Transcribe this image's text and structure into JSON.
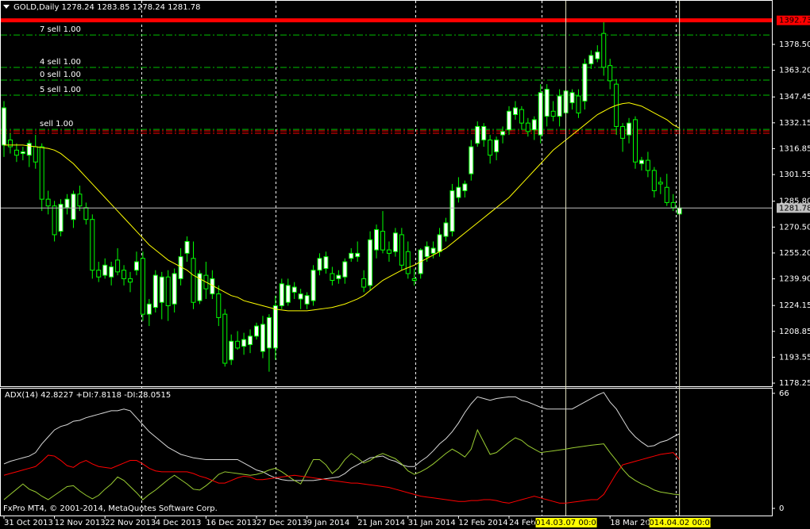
{
  "chart_data": [
    {
      "type": "candlestick",
      "title": "GOLD,Daily  1278.24 1283.85 1278.24 1281.78",
      "categories": [
        "31 Oct 2013",
        null,
        null,
        null,
        null,
        null,
        null,
        null,
        "12 Nov 2013",
        null,
        null,
        null,
        null,
        null,
        null,
        null,
        "22 Nov 2013",
        null,
        null,
        null,
        null,
        null,
        null,
        null,
        "4 Dec 2013",
        null,
        null,
        null,
        null,
        null,
        null,
        null,
        "16 Dec 2013",
        null,
        null,
        null,
        null,
        null,
        null,
        null,
        "27 Dec 2013",
        null,
        null,
        null,
        null,
        null,
        null,
        null,
        "9 Jan 2014",
        null,
        null,
        null,
        null,
        null,
        null,
        null,
        "21 Jan 2014",
        null,
        null,
        null,
        null,
        null,
        null,
        null,
        "31 Jan 2014",
        null,
        null,
        null,
        null,
        null,
        null,
        null,
        "12 Feb 2014",
        null,
        null,
        null,
        null,
        null,
        null,
        null,
        "24 Feb 2014",
        null,
        null,
        null,
        null,
        null,
        null,
        null,
        null,
        "2014.03.07 00:00",
        null,
        null,
        null,
        null,
        null,
        null,
        "18 Mar 2014",
        null,
        null,
        null,
        null,
        null,
        null,
        null,
        null,
        null,
        null,
        "2014.04.02 00:00"
      ],
      "open": [
        1319,
        1322,
        1316,
        1314,
        1313,
        1318,
        1318,
        1287,
        1283,
        1268,
        1282,
        1275,
        1290,
        1282,
        1275,
        1245,
        1242,
        1241,
        1251,
        1245,
        1240,
        1245,
        1252,
        1219,
        1223,
        1226,
        1241,
        1225,
        1240,
        1255,
        1252,
        1227,
        1242,
        1231,
        1231,
        1219,
        1192,
        1203,
        1200,
        1201,
        1206,
        1197,
        1199,
        1199,
        1224,
        1226,
        1232,
        1228,
        1225,
        1227,
        1245,
        1246,
        1243,
        1240,
        1241,
        1252,
        1253,
        1240,
        1236,
        1257,
        1268,
        1257,
        1256,
        1266,
        1256,
        1240,
        1243,
        1253,
        1255,
        1256,
        1265,
        1268,
        1288,
        1292,
        1302,
        1320,
        1322,
        1322,
        1315,
        1325,
        1328,
        1337,
        1340,
        1332,
        1328,
        1325,
        1336,
        1339,
        1336,
        1338,
        1344,
        1348,
        1345,
        1367,
        1370,
        1385,
        1366,
        1355,
        1330,
        1325,
        1334,
        1308,
        1310,
        1304,
        1297,
        1294,
        1285,
        1278.24
      ],
      "high": [
        1345,
        1326,
        1320,
        1318,
        1322,
        1325,
        1320,
        1292,
        1286,
        1287,
        1290,
        1292,
        1295,
        1285,
        1278,
        1250,
        1252,
        1250,
        1258,
        1248,
        1244,
        1256,
        1256,
        1228,
        1245,
        1244,
        1245,
        1246,
        1258,
        1265,
        1262,
        1245,
        1250,
        1245,
        1236,
        1222,
        1207,
        1209,
        1208,
        1210,
        1214,
        1218,
        1219,
        1230,
        1240,
        1240,
        1238,
        1234,
        1232,
        1248,
        1255,
        1256,
        1247,
        1245,
        1252,
        1258,
        1262,
        1245,
        1268,
        1272,
        1280,
        1262,
        1270,
        1270,
        1262,
        1246,
        1258,
        1262,
        1262,
        1270,
        1276,
        1296,
        1300,
        1298,
        1322,
        1333,
        1332,
        1325,
        1324,
        1330,
        1342,
        1345,
        1342,
        1335,
        1336,
        1355,
        1355,
        1345,
        1352,
        1354,
        1352,
        1352,
        1370,
        1375,
        1378,
        1392,
        1370,
        1358,
        1332,
        1335,
        1336,
        1312,
        1315,
        1306,
        1300,
        1302,
        1290,
        1283.85
      ],
      "low": [
        1312,
        1314,
        1309,
        1310,
        1306,
        1305,
        1280,
        1278,
        1262,
        1265,
        1278,
        1270,
        1280,
        1272,
        1240,
        1238,
        1240,
        1236,
        1242,
        1236,
        1232,
        1242,
        1215,
        1212,
        1220,
        1216,
        1215,
        1220,
        1236,
        1250,
        1222,
        1225,
        1228,
        1228,
        1212,
        1188,
        1189,
        1198,
        1195,
        1196,
        1204,
        1193,
        1185,
        1192,
        1222,
        1224,
        1228,
        1222,
        1222,
        1224,
        1242,
        1243,
        1236,
        1237,
        1237,
        1250,
        1250,
        1232,
        1233,
        1252,
        1255,
        1250,
        1253,
        1245,
        1240,
        1236,
        1240,
        1250,
        1252,
        1253,
        1262,
        1265,
        1285,
        1288,
        1298,
        1318,
        1318,
        1308,
        1310,
        1320,
        1325,
        1334,
        1328,
        1324,
        1322,
        1320,
        1330,
        1333,
        1330,
        1335,
        1340,
        1335,
        1340,
        1364,
        1368,
        1360,
        1352,
        1325,
        1315,
        1320,
        1305,
        1304,
        1300,
        1288,
        1290,
        1283,
        1280,
        1278.24
      ],
      "close": [
        1341,
        1318,
        1313,
        1315,
        1320,
        1309,
        1287,
        1283,
        1266,
        1284,
        1287,
        1290,
        1283,
        1275,
        1245,
        1241,
        1248,
        1247,
        1244,
        1240,
        1238,
        1250,
        1219,
        1225,
        1242,
        1241,
        1224,
        1243,
        1253,
        1262,
        1226,
        1243,
        1234,
        1240,
        1217,
        1190,
        1203,
        1199,
        1204,
        1206,
        1212,
        1213,
        1217,
        1224,
        1237,
        1236,
        1235,
        1231,
        1230,
        1245,
        1252,
        1253,
        1239,
        1242,
        1250,
        1255,
        1255,
        1235,
        1263,
        1269,
        1257,
        1255,
        1267,
        1248,
        1243,
        1239,
        1257,
        1259,
        1258,
        1266,
        1273,
        1292,
        1294,
        1296,
        1318,
        1330,
        1330,
        1313,
        1322,
        1327,
        1339,
        1341,
        1332,
        1327,
        1334,
        1350,
        1352,
        1336,
        1348,
        1351,
        1350,
        1338,
        1367,
        1372,
        1374,
        1365,
        1357,
        1330,
        1323,
        1332,
        1309,
        1310,
        1304,
        1292,
        1296,
        1285,
        1282,
        1281.78
      ],
      "up_color": "#ffffff",
      "down_color": "#000000",
      "wick_color": "#00ff00",
      "series": [
        {
          "color": "#ffff00",
          "values": [
            1319,
            1319,
            1319,
            1319,
            1318.5,
            1318,
            1317.5,
            1317,
            1316,
            1314,
            1311,
            1308,
            1304,
            1300,
            1296,
            1292,
            1288,
            1284,
            1280,
            1276,
            1272,
            1268,
            1264,
            1260,
            1257,
            1254,
            1251,
            1249,
            1247,
            1245,
            1242,
            1240,
            1238,
            1236,
            1234,
            1232,
            1230,
            1229,
            1227,
            1226,
            1225,
            1224,
            1223,
            1222,
            1221.5,
            1221,
            1221,
            1221,
            1221,
            1221.5,
            1222,
            1222.5,
            1223,
            1224,
            1225,
            1226.5,
            1228,
            1230,
            1233,
            1236,
            1239,
            1241,
            1243,
            1245,
            1246.5,
            1248,
            1250,
            1252,
            1254,
            1256,
            1258,
            1261,
            1264,
            1267,
            1270,
            1273,
            1276,
            1279,
            1282,
            1285,
            1288,
            1292,
            1296,
            1300,
            1304,
            1308,
            1312,
            1316,
            1319,
            1322,
            1325,
            1328,
            1331,
            1334,
            1337,
            1339,
            1341,
            1342.5,
            1343.5,
            1344,
            1343,
            1342,
            1340,
            1338,
            1336,
            1334,
            1331,
            1329
          ]
        }
      ],
      "price_lines": [
        {
          "value": 1392.73,
          "label": "1392.73",
          "color": "#ff0000"
        },
        {
          "value": 1281.78,
          "label": "1281.78",
          "color": "#c0c0c0"
        }
      ],
      "order_lines": [
        {
          "value": 1384.1,
          "label": "7 sell 1.00",
          "color": "#00c000"
        },
        {
          "value": 1364.9,
          "label": "4 sell 1.00",
          "color": "#00c000"
        },
        {
          "value": 1357.4,
          "label": "0 sell 1.00",
          "color": "#00c000"
        },
        {
          "value": 1348.5,
          "label": "5 sell 1.00",
          "color": "#00c000"
        },
        {
          "value": 1328.3,
          "label": "sell 1.00",
          "color": "#00c000"
        },
        {
          "value": 1327.4,
          "color": "#ff0000"
        },
        {
          "value": 1326.0,
          "color": "#ff0000"
        }
      ],
      "ylim": [
        1176.4,
        1398.2
      ],
      "yticks": [
        1178.25,
        1193.55,
        1208.85,
        1224.15,
        {
          "value": 1239.9,
          "label": "1239.90"
        },
        {
          "value": 1255.2,
          "label": "1255.20"
        },
        {
          "value": 1270.5,
          "label": "1270.50"
        },
        {
          "value": 1285.8,
          "label": "1285.80"
        },
        1301.55,
        1316.85,
        1332.15,
        1347.45,
        {
          "value": 1363.2,
          "label": "1363.20"
        },
        {
          "value": 1378.5,
          "label": "1378.50"
        }
      ],
      "grid": false
    },
    {
      "type": "line",
      "title": "ADX(14) 42.8227 +DI:7.8118 -DI:28.0515",
      "annotation": "FxPro MT4, © 2001-2014, MetaQuotes Software Corp.",
      "series": [
        {
          "color": "#d8d8d8",
          "values": [
            25.5,
            27,
            28,
            29,
            30,
            32,
            37,
            41,
            45,
            47,
            48,
            50,
            50.5,
            52,
            53,
            54,
            55,
            56,
            56,
            57,
            56,
            52,
            48,
            44,
            41,
            38,
            35,
            33,
            31,
            30,
            29,
            28.5,
            28,
            28,
            28,
            28,
            28,
            28,
            26,
            24,
            22,
            21,
            19,
            17.5,
            16.5,
            16,
            16,
            16,
            16,
            16,
            16.5,
            17,
            17.5,
            18,
            20,
            23,
            25,
            27,
            29,
            29.5,
            30,
            28,
            27,
            25,
            24,
            24,
            27,
            29.5,
            33,
            37,
            40,
            44,
            49,
            55,
            60,
            64,
            63,
            62,
            63,
            63.5,
            64,
            64,
            62,
            61,
            59.5,
            58,
            57,
            57,
            57,
            57,
            57,
            59,
            61,
            63,
            65,
            66.5,
            61,
            57,
            51,
            45,
            41,
            38,
            35.5,
            36,
            38,
            39,
            41,
            42.8227
          ]
        },
        {
          "color": "#9acd32",
          "values": [
            5,
            8,
            11,
            14,
            11,
            9.5,
            7,
            5,
            7.5,
            10,
            12.5,
            13,
            10,
            7.5,
            5.5,
            7.5,
            11,
            14,
            18,
            16,
            12.5,
            9,
            5,
            8,
            10.5,
            13.5,
            16.5,
            19,
            16.5,
            14,
            11,
            10.5,
            13,
            16,
            19.5,
            21,
            20.5,
            20,
            19.5,
            19,
            19.5,
            20.5,
            22,
            23,
            21,
            18.5,
            16,
            14,
            21,
            28,
            28,
            25,
            20,
            23,
            28,
            31.5,
            29,
            26,
            27.5,
            30,
            31.5,
            30,
            28.5,
            25.5,
            21.5,
            19.5,
            21,
            23,
            25.5,
            28.5,
            31.5,
            34,
            32,
            29.5,
            34,
            45,
            38,
            31,
            32,
            35,
            38,
            40.5,
            39,
            36,
            34,
            32,
            32.5,
            33,
            33.5,
            34,
            34.7,
            35.2,
            35.7,
            36.2,
            36.6,
            37,
            32,
            27.5,
            22.5,
            18.5,
            16,
            14,
            12.5,
            10.5,
            9.4,
            8.8,
            8.2,
            7.8118
          ]
        },
        {
          "color": "#ff0000",
          "values": [
            19,
            20,
            21,
            22,
            23,
            24,
            27,
            30.5,
            30,
            27.5,
            24.5,
            23.5,
            26,
            27.5,
            25.5,
            24,
            23.5,
            23,
            24.5,
            26,
            27.5,
            27.5,
            25.5,
            23,
            21.5,
            21,
            21,
            21,
            21,
            21,
            20,
            18.5,
            17.5,
            16,
            14.5,
            14.5,
            16,
            17.5,
            18.5,
            18,
            16.5,
            16.5,
            17,
            17.5,
            18,
            18.5,
            19,
            18.5,
            18,
            17.5,
            17,
            16.5,
            16,
            15.5,
            15,
            14.5,
            14.5,
            14,
            13.5,
            13,
            12.5,
            12,
            11,
            10,
            9,
            8,
            7,
            6.5,
            6,
            5.5,
            5,
            4.5,
            4,
            4,
            4.5,
            4.5,
            5,
            5,
            4.5,
            3.5,
            3,
            4,
            5,
            6,
            7,
            6,
            5,
            4,
            3,
            3,
            3.5,
            4,
            4.5,
            5,
            5,
            8,
            14,
            20,
            25,
            26,
            27,
            28,
            29,
            30,
            31,
            31.5,
            32,
            28.0515
          ]
        }
      ],
      "ylim": [
        -4.1,
        68.7
      ],
      "yticks": [
        0,
        66
      ]
    }
  ]
}
